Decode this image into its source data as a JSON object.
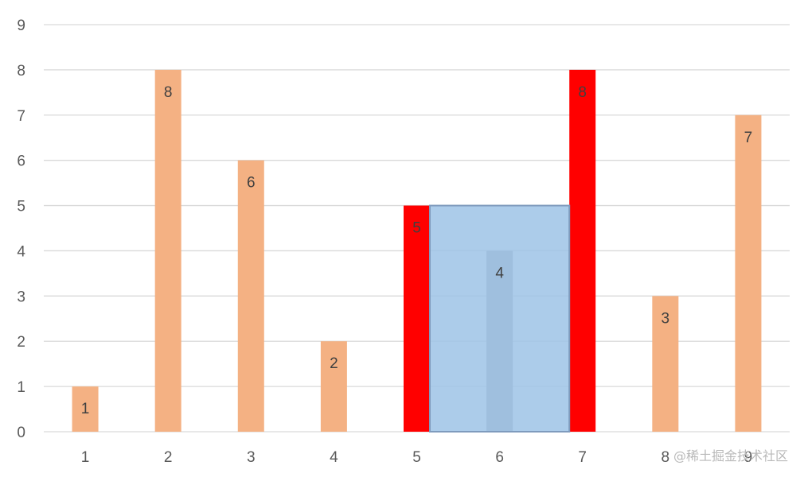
{
  "chart_data": {
    "type": "bar",
    "title": "",
    "xlabel": "",
    "ylabel": "",
    "categories": [
      "1",
      "2",
      "3",
      "4",
      "5",
      "6",
      "7",
      "8",
      "9"
    ],
    "values": [
      1,
      8,
      6,
      2,
      5,
      4,
      8,
      3,
      7
    ],
    "data_labels": [
      "1",
      "8",
      "6",
      "2",
      "5",
      "4",
      "8",
      "3",
      "7"
    ],
    "yticks": [
      "0",
      "1",
      "2",
      "3",
      "4",
      "5",
      "6",
      "7",
      "8",
      "9"
    ],
    "ylim": [
      0,
      9
    ],
    "grid": true,
    "legend": "none",
    "bar_colors": [
      "#f4b183",
      "#f4b183",
      "#f4b183",
      "#f4b183",
      "#ff0000",
      "#a5a5ad",
      "#ff0000",
      "#f4b183",
      "#f4b183"
    ],
    "highlight_region": {
      "x_from": "5",
      "x_to": "7",
      "y_from": 0,
      "y_to": 5,
      "fill": "#9dc3e6",
      "stroke": "#7f9bbd"
    }
  },
  "colors": {
    "default_bar": "#f4b183",
    "boundary_bar": "#ff0000",
    "inner_bar": "#a5a5ad",
    "gridline": "#d9d9d9",
    "tick_text": "#595959",
    "label_text": "#404040"
  },
  "watermark": "@稀土掘金技术社区"
}
